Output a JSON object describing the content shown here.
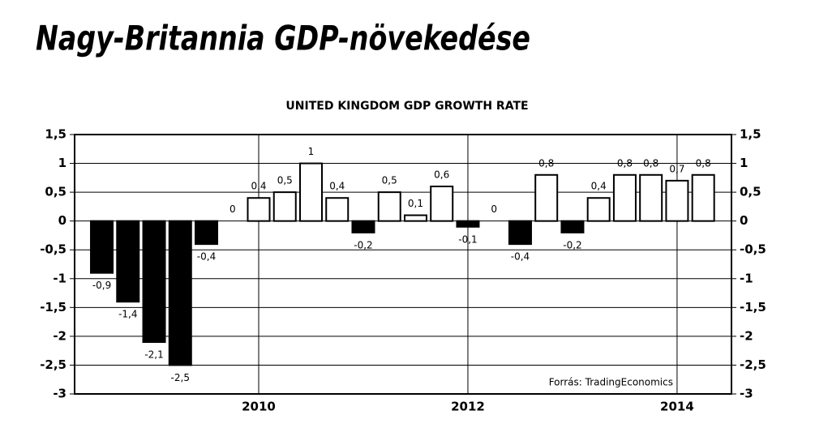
{
  "chart_data": {
    "type": "bar",
    "title": "Nagy-Britannia GDP-növekedése",
    "subtitle": "UNITED KINGDOM GDP GROWTH RATE",
    "source": "Forrás: TradingEconomics",
    "x": [
      2008.5,
      2008.75,
      2009,
      2009.25,
      2009.5,
      2009.75,
      2010,
      2010.25,
      2010.5,
      2010.75,
      2011,
      2011.25,
      2011.5,
      2011.75,
      2012,
      2012.25,
      2012.5,
      2012.75,
      2013,
      2013.25,
      2013.5,
      2013.75,
      2014,
      2014.25
    ],
    "values": [
      -0.9,
      -1.4,
      -2.1,
      -2.5,
      -0.4,
      0,
      0.4,
      0.5,
      1,
      0.4,
      -0.2,
      0.5,
      0.1,
      0.6,
      -0.1,
      0,
      -0.4,
      0.8,
      -0.2,
      0.4,
      0.8,
      0.8,
      0.7,
      0.8
    ],
    "value_labels": [
      "-0,9",
      "-1,4",
      "-2,1",
      "-2,5",
      "-0,4",
      "0",
      "0,4",
      "0,5",
      "1",
      "0,4",
      "-0,2",
      "0,5",
      "0,1",
      "0,6",
      "-0,1",
      "0",
      "-0,4",
      "0,8",
      "-0,2",
      "0,4",
      "0,8",
      "0,8",
      "0,7",
      "0,8"
    ],
    "positive_color": "#ffffff",
    "negative_color": "#000000",
    "xlim": [
      2008.24,
      2014.52
    ],
    "xticks": [
      2010,
      2012,
      2014
    ],
    "ylim": [
      -3,
      1.5
    ],
    "yticks": [
      {
        "value": 1.5,
        "label": "1,5"
      },
      1,
      {
        "value": 0.5,
        "label": "0,5"
      },
      0,
      {
        "value": -0.5,
        "label": "-0,5"
      },
      -1,
      {
        "value": -1.5,
        "label": "-1,5"
      },
      -2,
      {
        "value": -2.5,
        "label": "-2,5"
      },
      -3
    ],
    "grid": true
  }
}
